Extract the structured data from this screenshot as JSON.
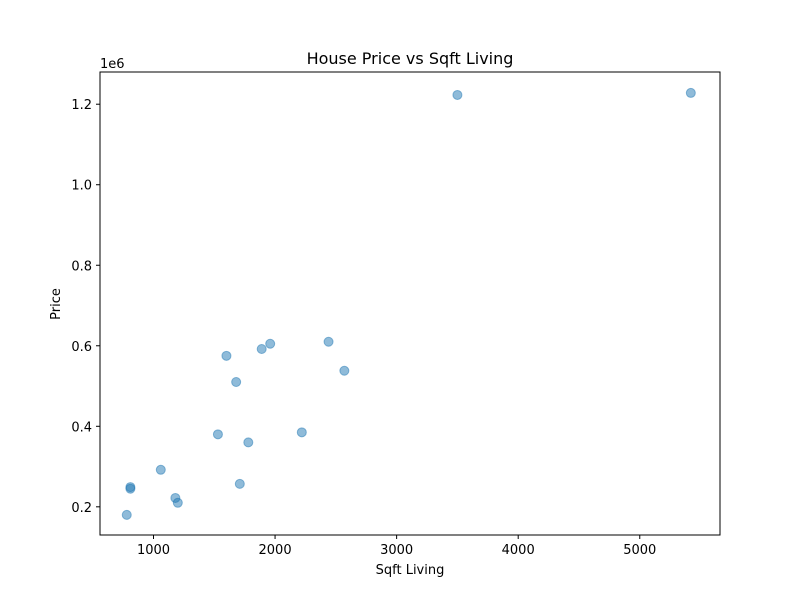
{
  "chart_data": {
    "type": "scatter",
    "title": "House Price vs Sqft Living",
    "xlabel": "Sqft Living",
    "ylabel": "Price",
    "y_offset_label": "1e6",
    "xlim": [
      560,
      5660
    ],
    "ylim": [
      130000,
      1280000
    ],
    "xticks": [
      1000,
      2000,
      3000,
      4000,
      5000
    ],
    "yticks": [
      200000,
      400000,
      600000,
      800000,
      1000000,
      1200000
    ],
    "ytick_labels": [
      "0.2",
      "0.4",
      "0.6",
      "0.8",
      "1.0",
      "1.2"
    ],
    "grid": false,
    "point_color": "#1f77b4",
    "point_alpha": 0.5,
    "series": [
      {
        "points": [
          {
            "x": 3500,
            "y": 1223000
          },
          {
            "x": 5420,
            "y": 1228000
          },
          {
            "x": 2440,
            "y": 610000
          },
          {
            "x": 1960,
            "y": 605000
          },
          {
            "x": 1890,
            "y": 592000
          },
          {
            "x": 1600,
            "y": 575000
          },
          {
            "x": 2570,
            "y": 538000
          },
          {
            "x": 1680,
            "y": 510000
          },
          {
            "x": 2220,
            "y": 385000
          },
          {
            "x": 1530,
            "y": 380000
          },
          {
            "x": 1780,
            "y": 360000
          },
          {
            "x": 1060,
            "y": 292000
          },
          {
            "x": 1710,
            "y": 257000
          },
          {
            "x": 810,
            "y": 249000
          },
          {
            "x": 810,
            "y": 245000
          },
          {
            "x": 1180,
            "y": 222000
          },
          {
            "x": 1200,
            "y": 210000
          },
          {
            "x": 780,
            "y": 180000
          }
        ]
      }
    ]
  }
}
